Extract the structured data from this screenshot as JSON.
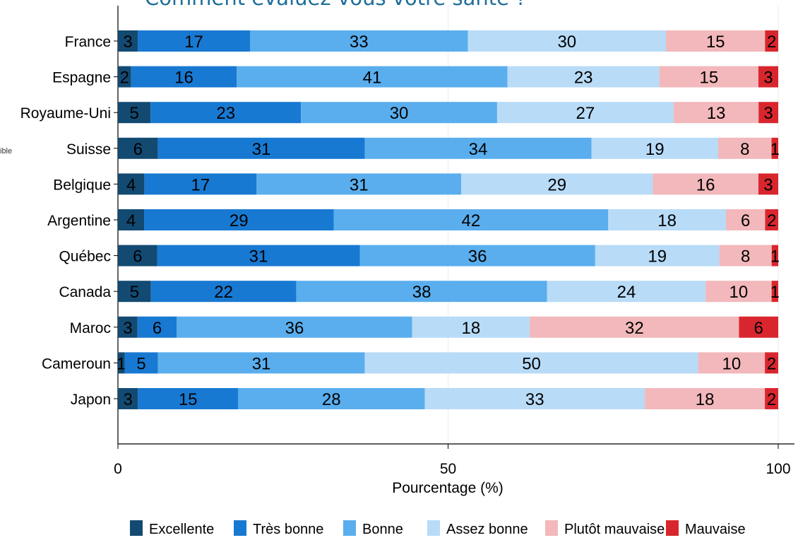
{
  "title": "Comment évaluez-vous votre santé ?",
  "side_fragment": "ible",
  "chart_data": {
    "type": "bar",
    "orientation": "horizontal",
    "stacked": true,
    "categories": [
      "France",
      "Espagne",
      "Royaume-Uni",
      "Suisse",
      "Belgique",
      "Argentine",
      "Québec",
      "Canada",
      "Maroc",
      "Cameroun",
      "Japon"
    ],
    "series": [
      {
        "name": "Excellente",
        "color": "#134a72",
        "values": [
          3,
          2,
          5,
          6,
          4,
          4,
          6,
          5,
          3,
          1,
          3
        ]
      },
      {
        "name": "Très bonne",
        "color": "#1879d2",
        "values": [
          17,
          16,
          23,
          31,
          17,
          29,
          31,
          22,
          6,
          5,
          15
        ]
      },
      {
        "name": "Bonne",
        "color": "#5aaeee",
        "values": [
          33,
          41,
          30,
          34,
          31,
          42,
          36,
          38,
          36,
          31,
          28
        ]
      },
      {
        "name": "Assez bonne",
        "color": "#b8dbf7",
        "values": [
          30,
          23,
          27,
          19,
          29,
          18,
          19,
          24,
          18,
          50,
          33
        ]
      },
      {
        "name": "Plutôt mauvaise",
        "color": "#f2b8bb",
        "values": [
          15,
          15,
          13,
          8,
          16,
          6,
          8,
          10,
          32,
          10,
          18
        ]
      },
      {
        "name": "Mauvaise",
        "color": "#d9262e",
        "values": [
          2,
          3,
          3,
          1,
          3,
          2,
          1,
          1,
          6,
          2,
          2
        ]
      }
    ],
    "xlabel": "Pourcentage (%)",
    "xlim": [
      0,
      100
    ],
    "xticks": [
      "0",
      "50",
      "100"
    ],
    "grid": true,
    "legend_position": "bottom"
  }
}
